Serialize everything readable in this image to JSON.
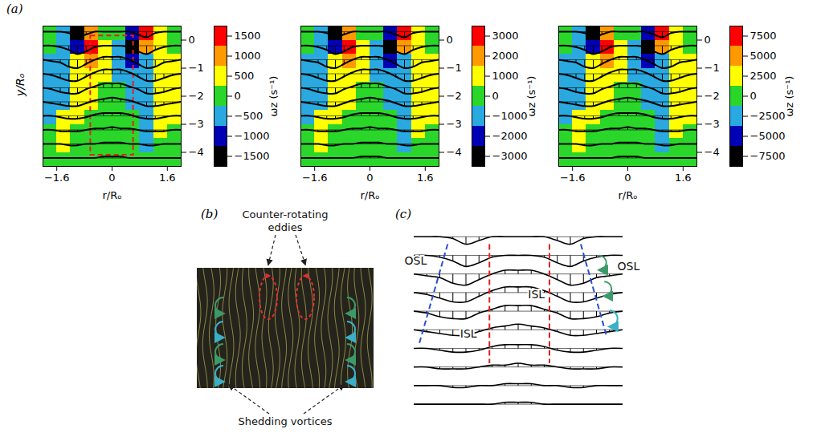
{
  "panel_a": {
    "label": "(a)"
  },
  "chart_data": [
    {
      "type": "heatmap",
      "xlabel": "r/Rₒ",
      "ylabel": "y/Rₒ",
      "xlim": [
        -2,
        2
      ],
      "ylim": [
        -4.5,
        0.5
      ],
      "xticks": [
        -1.6,
        0,
        1.6
      ],
      "yticks": [
        0,
        -1,
        -2,
        -3,
        -4
      ],
      "x": [
        -1.8,
        -1.4,
        -1.0,
        -0.6,
        -0.2,
        0.2,
        0.6,
        1.0,
        1.4,
        1.8
      ],
      "y": [
        0.25,
        -0.25,
        -0.75,
        -1.25,
        -1.75,
        -2.25,
        -2.75,
        -3.25,
        -3.75,
        -4.25
      ],
      "cells": [
        [
          0,
          -500,
          -1500,
          1000,
          0,
          0,
          -1000,
          1500,
          500,
          0
        ],
        [
          0,
          -500,
          -1000,
          1500,
          500,
          -500,
          -1500,
          1000,
          500,
          0
        ],
        [
          -500,
          -500,
          500,
          1000,
          500,
          -500,
          -1000,
          -500,
          500,
          500
        ],
        [
          -500,
          -500,
          500,
          500,
          500,
          -500,
          -500,
          -500,
          500,
          500
        ],
        [
          -500,
          -500,
          500,
          500,
          0,
          0,
          -500,
          -500,
          500,
          500
        ],
        [
          -500,
          -500,
          500,
          500,
          0,
          0,
          -500,
          -500,
          500,
          500
        ],
        [
          -500,
          500,
          500,
          0,
          0,
          0,
          0,
          -500,
          500,
          500
        ],
        [
          0,
          500,
          0,
          0,
          0,
          0,
          0,
          -500,
          500,
          0
        ],
        [
          0,
          500,
          0,
          0,
          0,
          0,
          0,
          -500,
          0,
          0
        ],
        [
          0,
          0,
          0,
          0,
          0,
          0,
          0,
          0,
          0,
          0
        ]
      ],
      "colorbar": {
        "label": "ωz (s⁻¹)",
        "range": [
          -1750,
          1750
        ],
        "ticks": [
          -1500,
          -1000,
          -500,
          0,
          500,
          1000,
          1500
        ],
        "colors": [
          "#000000",
          "#0000b4",
          "#29a9e0",
          "#2bd62b",
          "#ffff00",
          "#ff9900",
          "#ff0000"
        ]
      },
      "highlight_box": {
        "x": [
          -0.62,
          0.62
        ],
        "y": [
          -4.1,
          0.15
        ],
        "color": "#e02020",
        "line_style": "dashed"
      }
    },
    {
      "type": "heatmap",
      "xlabel": "r/Rₒ",
      "xlim": [
        -2,
        2
      ],
      "ylim": [
        -4.5,
        0.5
      ],
      "xticks": [
        -1.6,
        0,
        1.6
      ],
      "yticks": [
        0,
        -1,
        -2,
        -3,
        -4
      ],
      "x": [
        -1.8,
        -1.4,
        -1.0,
        -0.6,
        -0.2,
        0.2,
        0.6,
        1.0,
        1.4,
        1.8
      ],
      "y": [
        0.25,
        -0.25,
        -0.75,
        -1.25,
        -1.75,
        -2.25,
        -2.75,
        -3.25,
        -3.75,
        -4.25
      ],
      "cells": [
        [
          0,
          -1000,
          -3000,
          2000,
          0,
          0,
          -2000,
          3000,
          1000,
          0
        ],
        [
          0,
          -1000,
          -2000,
          3000,
          1000,
          -1000,
          -3000,
          2000,
          1000,
          0
        ],
        [
          -1000,
          -1000,
          1000,
          2000,
          1000,
          -1000,
          -2000,
          -1000,
          1000,
          1000
        ],
        [
          -1000,
          -1000,
          1000,
          1000,
          1000,
          -1000,
          -1000,
          -1000,
          1000,
          1000
        ],
        [
          -1000,
          -1000,
          1000,
          1000,
          0,
          0,
          -1000,
          -1000,
          1000,
          1000
        ],
        [
          -1000,
          -1000,
          1000,
          1000,
          0,
          0,
          -1000,
          -1000,
          1000,
          1000
        ],
        [
          -1000,
          1000,
          1000,
          0,
          0,
          0,
          0,
          -1000,
          1000,
          1000
        ],
        [
          0,
          1000,
          0,
          0,
          0,
          0,
          0,
          -1000,
          1000,
          0
        ],
        [
          0,
          1000,
          0,
          0,
          0,
          0,
          0,
          -1000,
          0,
          0
        ],
        [
          0,
          0,
          0,
          0,
          0,
          0,
          0,
          0,
          0,
          0
        ]
      ],
      "colorbar": {
        "label": "ωz (s⁻¹)",
        "range": [
          -3500,
          3500
        ],
        "ticks": [
          -3000,
          -2000,
          -1000,
          0,
          1000,
          2000,
          3000
        ],
        "colors": [
          "#000000",
          "#0000b4",
          "#29a9e0",
          "#2bd62b",
          "#ffff00",
          "#ff9900",
          "#ff0000"
        ]
      }
    },
    {
      "type": "heatmap",
      "xlabel": "r/Rₒ",
      "xlim": [
        -2,
        2
      ],
      "ylim": [
        -4.5,
        0.5
      ],
      "xticks": [
        -1.6,
        0,
        1.6
      ],
      "yticks": [
        0,
        -1,
        -2,
        -3,
        -4
      ],
      "x": [
        -1.8,
        -1.4,
        -1.0,
        -0.6,
        -0.2,
        0.2,
        0.6,
        1.0,
        1.4,
        1.8
      ],
      "y": [
        0.25,
        -0.25,
        -0.75,
        -1.25,
        -1.75,
        -2.25,
        -2.75,
        -3.25,
        -3.75,
        -4.25
      ],
      "cells": [
        [
          0,
          -2500,
          -7500,
          5000,
          0,
          0,
          -5000,
          7500,
          2500,
          0
        ],
        [
          0,
          -2500,
          -5000,
          7500,
          2500,
          -2500,
          -7500,
          5000,
          2500,
          0
        ],
        [
          -2500,
          -2500,
          2500,
          5000,
          2500,
          -2500,
          -5000,
          -2500,
          2500,
          2500
        ],
        [
          -2500,
          -2500,
          2500,
          2500,
          2500,
          -2500,
          -2500,
          -2500,
          2500,
          2500
        ],
        [
          -2500,
          -2500,
          2500,
          2500,
          0,
          0,
          -2500,
          -2500,
          2500,
          2500
        ],
        [
          -2500,
          -2500,
          2500,
          2500,
          0,
          0,
          -2500,
          -2500,
          2500,
          2500
        ],
        [
          -2500,
          2500,
          2500,
          0,
          0,
          0,
          0,
          -2500,
          2500,
          2500
        ],
        [
          0,
          2500,
          0,
          0,
          0,
          0,
          0,
          -2500,
          2500,
          0
        ],
        [
          0,
          2500,
          0,
          0,
          0,
          0,
          0,
          -2500,
          0,
          0
        ],
        [
          0,
          0,
          0,
          0,
          0,
          0,
          0,
          0,
          0,
          0
        ]
      ],
      "colorbar": {
        "label": "ωz (s⁻¹)",
        "range": [
          -8750,
          8750
        ],
        "ticks": [
          -7500,
          -5000,
          -2500,
          0,
          2500,
          5000,
          7500
        ],
        "colors": [
          "#000000",
          "#0000b4",
          "#29a9e0",
          "#2bd62b",
          "#ffff00",
          "#ff9900",
          "#ff0000"
        ]
      }
    }
  ],
  "velocity_vectors": {
    "color": "#000000",
    "x": [
      -2,
      -1.75,
      -1.5,
      -1.25,
      -1,
      -0.75,
      -0.5,
      -0.25,
      0,
      0.25,
      0.5,
      0.75,
      1,
      1.25,
      1.5,
      1.75,
      2
    ],
    "rows": [
      {
        "y": 0.3,
        "dy": [
          0,
          0,
          0,
          -0.05,
          -0.2,
          -0.1,
          0,
          0,
          0,
          0,
          0,
          -0.1,
          -0.2,
          -0.05,
          0,
          0,
          0
        ]
      },
      {
        "y": -0.2,
        "dy": [
          0,
          0,
          -0.05,
          -0.15,
          -0.3,
          -0.2,
          -0.05,
          0,
          0,
          0,
          -0.05,
          -0.2,
          -0.3,
          -0.15,
          -0.05,
          0,
          0
        ]
      },
      {
        "y": -0.7,
        "dy": [
          0,
          -0.05,
          -0.1,
          -0.25,
          -0.3,
          -0.15,
          0,
          0.1,
          0.1,
          0.1,
          0,
          -0.15,
          -0.3,
          -0.25,
          -0.1,
          -0.05,
          0
        ]
      },
      {
        "y": -1.2,
        "dy": [
          0,
          -0.05,
          -0.15,
          -0.25,
          -0.25,
          -0.1,
          0.05,
          0.15,
          0.15,
          0.15,
          0.05,
          -0.1,
          -0.25,
          -0.25,
          -0.15,
          -0.05,
          0
        ]
      },
      {
        "y": -1.7,
        "dy": [
          0,
          -0.05,
          -0.15,
          -0.2,
          -0.2,
          -0.05,
          0.05,
          0.15,
          0.15,
          0.15,
          0.05,
          -0.05,
          -0.2,
          -0.2,
          -0.15,
          -0.05,
          0
        ]
      },
      {
        "y": -2.2,
        "dy": [
          0,
          -0.05,
          -0.1,
          -0.15,
          -0.15,
          -0.05,
          0.05,
          0.1,
          0.15,
          0.1,
          0.05,
          -0.05,
          -0.15,
          -0.15,
          -0.1,
          -0.05,
          0
        ]
      },
      {
        "y": -2.7,
        "dy": [
          0,
          0,
          -0.05,
          -0.1,
          -0.1,
          -0.05,
          0.05,
          0.1,
          0.1,
          0.1,
          0.05,
          -0.05,
          -0.1,
          -0.1,
          -0.05,
          0,
          0
        ]
      },
      {
        "y": -3.2,
        "dy": [
          0,
          0,
          -0.05,
          -0.05,
          -0.05,
          0,
          0.05,
          0.05,
          0.1,
          0.05,
          0.05,
          0,
          -0.05,
          -0.05,
          -0.05,
          0,
          0
        ]
      },
      {
        "y": -3.7,
        "dy": [
          0,
          0,
          0,
          -0.05,
          -0.05,
          0,
          0,
          0.05,
          0.05,
          0.05,
          0,
          0,
          -0.05,
          -0.05,
          0,
          0,
          0
        ]
      },
      {
        "y": -4.2,
        "dy": [
          0,
          0,
          0,
          0,
          0,
          0,
          0,
          0.05,
          0.05,
          0.05,
          0,
          0,
          0,
          0,
          0,
          0,
          0
        ]
      }
    ]
  },
  "panel_b": {
    "label": "(b)",
    "top_annotation": "Counter-rotating eddies",
    "bottom_annotation": "Shedding vortices"
  },
  "panel_c": {
    "label": "(c)",
    "annotations": [
      "OSL",
      "OSL",
      "ISL",
      "ISL"
    ]
  }
}
